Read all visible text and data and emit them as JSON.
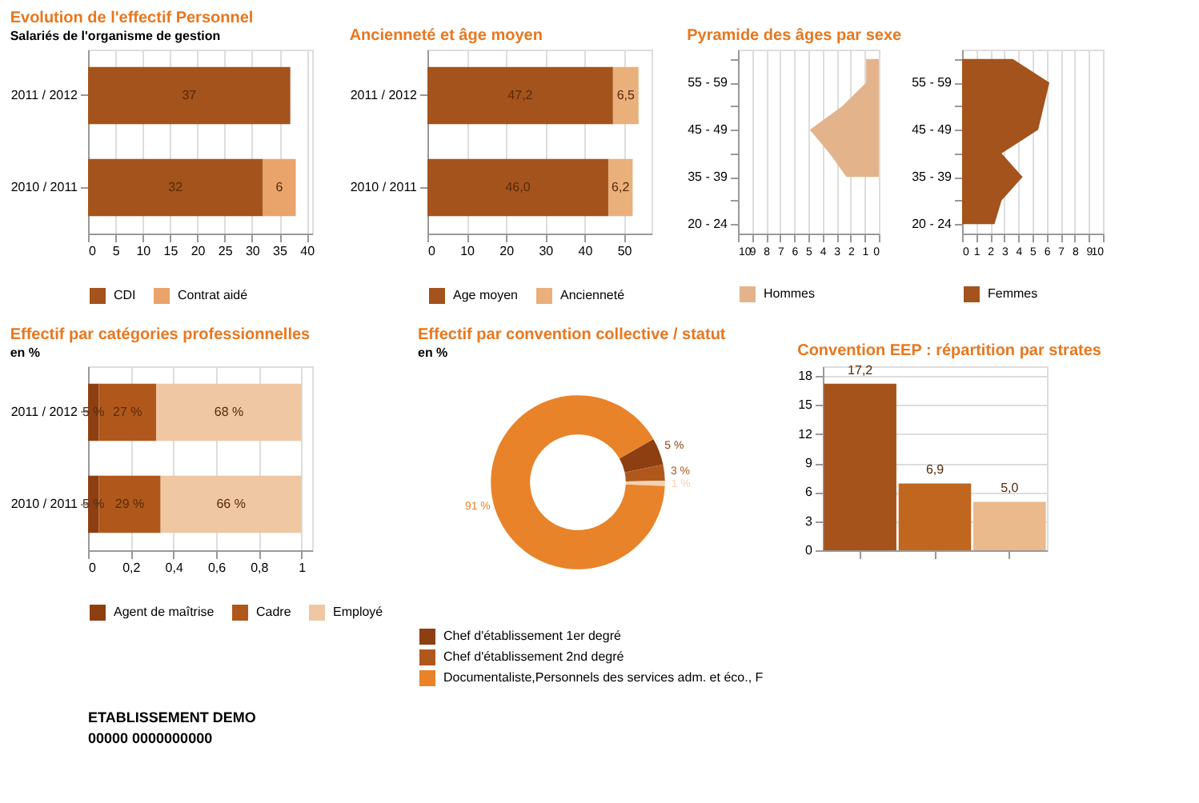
{
  "chart_data": [
    {
      "type": "bar",
      "orientation": "horizontal",
      "stacked": true,
      "title": "Evolution de l'effectif Personnel",
      "subtitle": "Salariés de l'organisme de gestion",
      "categories": [
        "2011 / 2012",
        "2010 / 2011"
      ],
      "xlim": [
        0,
        41
      ],
      "xticks": [
        0,
        5,
        10,
        15,
        20,
        25,
        30,
        35,
        40
      ],
      "grid": "x",
      "legend": "bottom",
      "series": [
        {
          "name": "CDI",
          "color": "#a4531c",
          "values": [
            37,
            32
          ],
          "value_labels": [
            "37",
            "32"
          ]
        },
        {
          "name": "Contrat aidé",
          "color": "#e9a46b",
          "values": [
            null,
            6
          ],
          "value_labels": [
            null,
            "6"
          ]
        }
      ]
    },
    {
      "type": "bar",
      "orientation": "horizontal",
      "stacked": true,
      "title": "Ancienneté et âge moyen",
      "categories": [
        "2011 / 2012",
        "2010 / 2011"
      ],
      "xlim": [
        0,
        57
      ],
      "xticks": [
        0,
        10,
        20,
        30,
        40,
        50
      ],
      "grid": "x",
      "legend": "bottom",
      "series": [
        {
          "name": "Age moyen",
          "color": "#a4531c",
          "values": [
            47.2,
            46.0
          ],
          "value_labels": [
            "47,2",
            "46,0"
          ]
        },
        {
          "name": "Ancienneté",
          "color": "#e9b07c",
          "values": [
            6.5,
            6.2
          ],
          "value_labels": [
            "6,5",
            "6,2"
          ]
        }
      ]
    },
    {
      "type": "area",
      "orientation": "horizontal",
      "title": "Pyramide des âges par sexe",
      "categories": [
        null,
        "55 - 59",
        null,
        "45 - 49",
        null,
        "35 - 39",
        null,
        "20 - 24"
      ],
      "xlim": [
        10,
        0
      ],
      "xticks": [
        10,
        9,
        8,
        7,
        6,
        5,
        4,
        3,
        2,
        1,
        0
      ],
      "grid": "x",
      "legend": "bottom",
      "series": [
        {
          "name": "Hommes",
          "color": "#e3b48c",
          "values": [
            0.9,
            0.9,
            2.6,
            4.9,
            3.5,
            2.3,
            null,
            null
          ]
        }
      ]
    },
    {
      "type": "area",
      "orientation": "horizontal",
      "categories": [
        null,
        "55 - 59",
        null,
        "45 - 49",
        null,
        "35 - 39",
        null,
        "20 - 24"
      ],
      "xlim": [
        0,
        10
      ],
      "xticks": [
        0,
        1,
        2,
        3,
        4,
        5,
        6,
        7,
        8,
        9,
        10
      ],
      "grid": "x",
      "legend": "bottom",
      "series": [
        {
          "name": "Femmes",
          "color": "#a4531c",
          "values": [
            3.6,
            6.2,
            5.8,
            5.4,
            2.8,
            4.3,
            2.8,
            2.3
          ]
        }
      ]
    },
    {
      "type": "bar",
      "orientation": "horizontal",
      "stacked": true,
      "title": "Effectif par catégories professionnelles",
      "subtitle": "en %",
      "categories": [
        "2011 / 2012",
        "2010 / 2011"
      ],
      "xlim": [
        0,
        1.05
      ],
      "xticks": [
        0,
        {
          "value": 0.2,
          "label": "0,2"
        },
        {
          "value": 0.4,
          "label": "0,4"
        },
        {
          "value": 0.6,
          "label": "0,6"
        },
        {
          "value": 0.8,
          "label": "0,8"
        },
        1
      ],
      "grid": "x",
      "legend": "bottom",
      "series": [
        {
          "name": "Agent de maîtrise",
          "color": "#8e3f12",
          "values": [
            0.05,
            0.05
          ],
          "value_labels": [
            "5 %",
            "5 %"
          ]
        },
        {
          "name": "Cadre",
          "color": "#b0581c",
          "values": [
            0.27,
            0.29
          ],
          "value_labels": [
            "27 %",
            "29 %"
          ]
        },
        {
          "name": "Employé",
          "color": "#efc7a2",
          "values": [
            0.68,
            0.66
          ],
          "value_labels": [
            "68 %",
            "66 %"
          ]
        }
      ]
    },
    {
      "type": "donut",
      "title": "Effectif par convention collective / statut",
      "subtitle": "en %",
      "legend": "bottom",
      "categories": [
        "Chef d'établissement 1er degré",
        "Chef d'établissement 2nd degré",
        null,
        "Documentaliste,Personnels des services adm. et éco., F"
      ],
      "values": [
        5,
        3,
        1,
        91
      ],
      "colors": [
        "#8e3f12",
        "#b0581c",
        "#f3d2b0",
        "#e8832a"
      ],
      "value_labels": [
        "5 %",
        "3 %",
        "1 %",
        "91 %"
      ]
    },
    {
      "type": "bar",
      "title": "Convention EEP : répartition par strates",
      "categories": [
        null,
        null,
        null
      ],
      "values": [
        17.2,
        6.9,
        5.0
      ],
      "colors": [
        "#a5521b",
        "#c0661f",
        "#eab98c"
      ],
      "value_labels": [
        "17,2",
        "6,9",
        "5,0"
      ],
      "ylim": [
        0,
        19
      ],
      "yticks": [
        0,
        3,
        6,
        9,
        12,
        15,
        18
      ],
      "grid": "y",
      "tick_labels": "y"
    },
    {
      "type": "other",
      "annotations": [
        "ETABLISSEMENT DEMO",
        "00000          0000000000"
      ]
    }
  ]
}
